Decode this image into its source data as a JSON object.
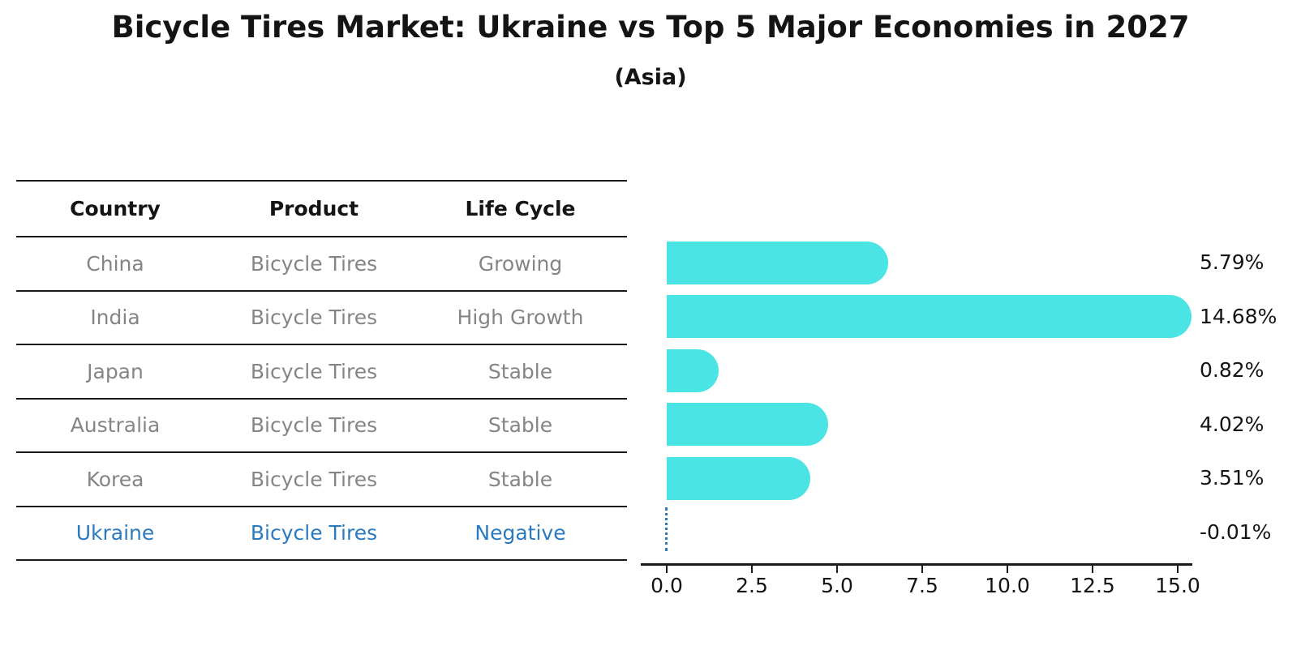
{
  "title": "Bicycle Tires Market: Ukraine vs Top 5 Major Economies in 2027",
  "subtitle": "(Asia)",
  "colors": {
    "bar": "#4ae4e4",
    "highlight": "#2b7ac0",
    "text": "#141414",
    "muted": "#858585",
    "line": "#1a1a1a"
  },
  "table": {
    "headers": [
      "Country",
      "Product",
      "Life Cycle"
    ],
    "rows": [
      {
        "country": "China",
        "product": "Bicycle Tires",
        "life_cycle": "Growing",
        "highlight": false
      },
      {
        "country": "India",
        "product": "Bicycle Tires",
        "life_cycle": "High Growth",
        "highlight": false
      },
      {
        "country": "Japan",
        "product": "Bicycle Tires",
        "life_cycle": "Stable",
        "highlight": false
      },
      {
        "country": "Australia",
        "product": "Bicycle Tires",
        "life_cycle": "Stable",
        "highlight": false
      },
      {
        "country": "Korea",
        "product": "Bicycle Tires",
        "life_cycle": "Stable",
        "highlight": false
      },
      {
        "country": "Ukraine",
        "product": "Bicycle Tires",
        "life_cycle": "Negative",
        "highlight": true
      }
    ]
  },
  "chart_data": {
    "type": "bar",
    "orientation": "horizontal",
    "title": "Bicycle Tires Market: Ukraine vs Top 5 Major Economies in 2027",
    "subtitle": "(Asia)",
    "categories": [
      "China",
      "India",
      "Japan",
      "Australia",
      "Korea",
      "Ukraine"
    ],
    "values": [
      5.79,
      14.68,
      0.82,
      4.02,
      3.51,
      -0.01
    ],
    "value_labels": [
      "5.79%",
      "14.68%",
      "0.82%",
      "4.02%",
      "3.51%",
      "-0.01%"
    ],
    "x_ticks": [
      0.0,
      2.5,
      5.0,
      7.5,
      10.0,
      12.5,
      15.0
    ],
    "x_tick_labels": [
      "0.0",
      "2.5",
      "5.0",
      "7.5",
      "10.0",
      "12.5",
      "15.0"
    ],
    "xlim": [
      0,
      15.5
    ],
    "grid": false,
    "legend": false,
    "bar_color": "#4ae4e4",
    "negative_style": "dotted-blue-line",
    "highlight_category": "Ukraine"
  }
}
